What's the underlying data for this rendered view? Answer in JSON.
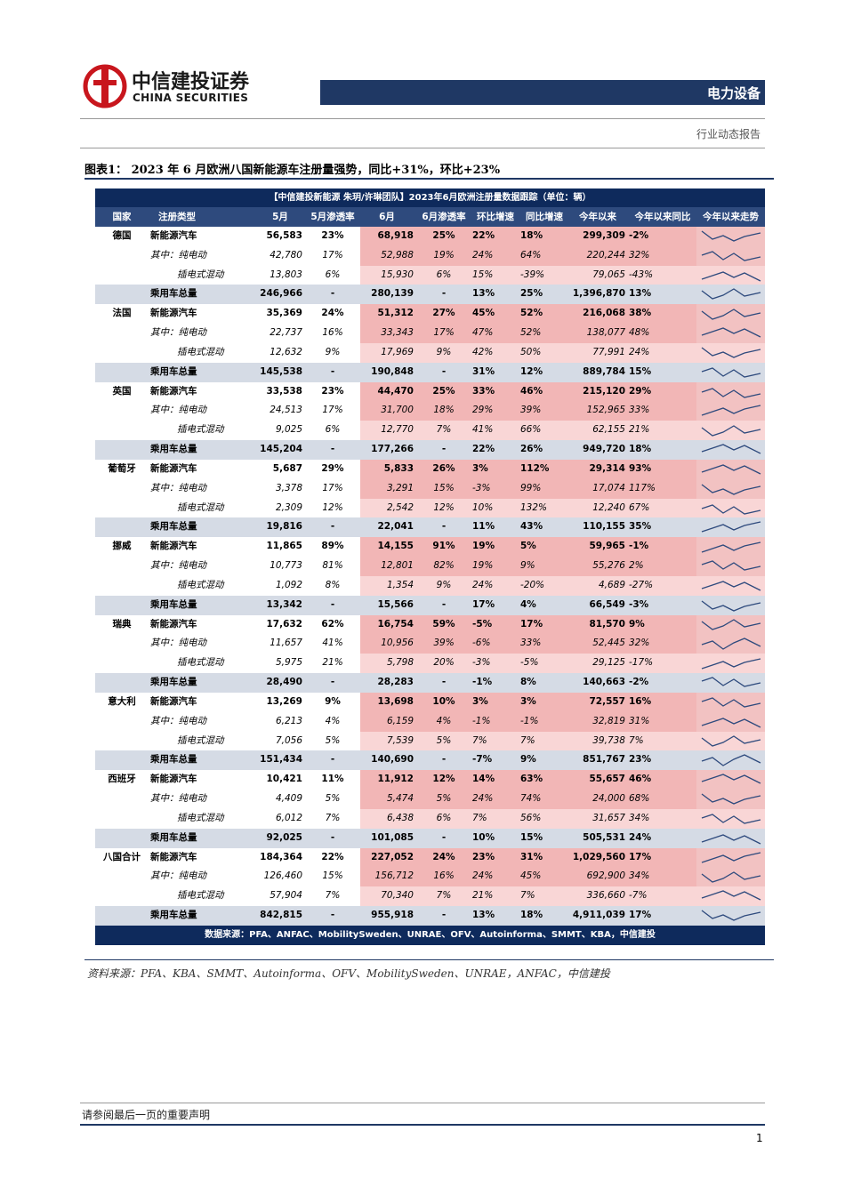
{
  "header": {
    "logo_cn": "中信建投证券",
    "logo_en": "CHINA SECURITIES",
    "sector": "电力设备",
    "report_type": "行业动态报告"
  },
  "figure": {
    "title": "图表1：  2023 年 6 月欧洲八国新能源车注册量强势，同比+31%，环比+23%"
  },
  "table": {
    "caption": "【中信建投新能源 朱玥/许琳团队】2023年6月欧洲注册量数据跟踪（单位：辆）",
    "columns": [
      "国家",
      "注册类型",
      "5月",
      "5月渗透率",
      "6月",
      "6月渗透率",
      "环比增速",
      "同比增速",
      "今年以来",
      "今年以来同比",
      "今年以来走势"
    ],
    "groups": [
      {
        "country": "德国",
        "rows": [
          [
            "新能源汽车",
            "56,583",
            "23%",
            "68,918",
            "25%",
            "22%",
            "18%",
            "299,309",
            "-2%"
          ],
          [
            "其中：纯电动",
            "42,780",
            "17%",
            "52,988",
            "19%",
            "24%",
            "64%",
            "220,244",
            "32%"
          ],
          [
            "插电式混动",
            "13,803",
            "6%",
            "15,930",
            "6%",
            "15%",
            "-39%",
            "79,065",
            "-43%"
          ],
          [
            "乘用车总量",
            "246,966",
            "-",
            "280,139",
            "-",
            "13%",
            "25%",
            "1,396,870",
            "13%"
          ]
        ]
      },
      {
        "country": "法国",
        "rows": [
          [
            "新能源汽车",
            "35,369",
            "24%",
            "51,312",
            "27%",
            "45%",
            "52%",
            "216,068",
            "38%"
          ],
          [
            "其中：纯电动",
            "22,737",
            "16%",
            "33,343",
            "17%",
            "47%",
            "52%",
            "138,077",
            "48%"
          ],
          [
            "插电式混动",
            "12,632",
            "9%",
            "17,969",
            "9%",
            "42%",
            "50%",
            "77,991",
            "24%"
          ],
          [
            "乘用车总量",
            "145,538",
            "-",
            "190,848",
            "-",
            "31%",
            "12%",
            "889,784",
            "15%"
          ]
        ]
      },
      {
        "country": "英国",
        "rows": [
          [
            "新能源汽车",
            "33,538",
            "23%",
            "44,470",
            "25%",
            "33%",
            "46%",
            "215,120",
            "29%"
          ],
          [
            "其中：纯电动",
            "24,513",
            "17%",
            "31,700",
            "18%",
            "29%",
            "39%",
            "152,965",
            "33%"
          ],
          [
            "插电式混动",
            "9,025",
            "6%",
            "12,770",
            "7%",
            "41%",
            "66%",
            "62,155",
            "21%"
          ],
          [
            "乘用车总量",
            "145,204",
            "-",
            "177,266",
            "-",
            "22%",
            "26%",
            "949,720",
            "18%"
          ]
        ]
      },
      {
        "country": "葡萄牙",
        "rows": [
          [
            "新能源汽车",
            "5,687",
            "29%",
            "5,833",
            "26%",
            "3%",
            "112%",
            "29,314",
            "93%"
          ],
          [
            "其中：纯电动",
            "3,378",
            "17%",
            "3,291",
            "15%",
            "-3%",
            "99%",
            "17,074",
            "117%"
          ],
          [
            "插电式混动",
            "2,309",
            "12%",
            "2,542",
            "12%",
            "10%",
            "132%",
            "12,240",
            "67%"
          ],
          [
            "乘用车总量",
            "19,816",
            "-",
            "22,041",
            "-",
            "11%",
            "43%",
            "110,155",
            "35%"
          ]
        ]
      },
      {
        "country": "挪威",
        "rows": [
          [
            "新能源汽车",
            "11,865",
            "89%",
            "14,155",
            "91%",
            "19%",
            "5%",
            "59,965",
            "-1%"
          ],
          [
            "其中：纯电动",
            "10,773",
            "81%",
            "12,801",
            "82%",
            "19%",
            "9%",
            "55,276",
            "2%"
          ],
          [
            "插电式混动",
            "1,092",
            "8%",
            "1,354",
            "9%",
            "24%",
            "-20%",
            "4,689",
            "-27%"
          ],
          [
            "乘用车总量",
            "13,342",
            "-",
            "15,566",
            "-",
            "17%",
            "4%",
            "66,549",
            "-3%"
          ]
        ]
      },
      {
        "country": "瑞典",
        "rows": [
          [
            "新能源汽车",
            "17,632",
            "62%",
            "16,754",
            "59%",
            "-5%",
            "17%",
            "81,570",
            "9%"
          ],
          [
            "其中：纯电动",
            "11,657",
            "41%",
            "10,956",
            "39%",
            "-6%",
            "33%",
            "52,445",
            "32%"
          ],
          [
            "插电式混动",
            "5,975",
            "21%",
            "5,798",
            "20%",
            "-3%",
            "-5%",
            "29,125",
            "-17%"
          ],
          [
            "乘用车总量",
            "28,490",
            "-",
            "28,283",
            "-",
            "-1%",
            "8%",
            "140,663",
            "-2%"
          ]
        ]
      },
      {
        "country": "意大利",
        "rows": [
          [
            "新能源汽车",
            "13,269",
            "9%",
            "13,698",
            "10%",
            "3%",
            "3%",
            "72,557",
            "16%"
          ],
          [
            "其中：纯电动",
            "6,213",
            "4%",
            "6,159",
            "4%",
            "-1%",
            "-1%",
            "32,819",
            "31%"
          ],
          [
            "插电式混动",
            "7,056",
            "5%",
            "7,539",
            "5%",
            "7%",
            "7%",
            "39,738",
            "7%"
          ],
          [
            "乘用车总量",
            "151,434",
            "-",
            "140,690",
            "-",
            "-7%",
            "9%",
            "851,767",
            "23%"
          ]
        ]
      },
      {
        "country": "西班牙",
        "rows": [
          [
            "新能源汽车",
            "10,421",
            "11%",
            "11,912",
            "12%",
            "14%",
            "63%",
            "55,657",
            "46%"
          ],
          [
            "其中：纯电动",
            "4,409",
            "5%",
            "5,474",
            "5%",
            "24%",
            "74%",
            "24,000",
            "68%"
          ],
          [
            "插电式混动",
            "6,012",
            "7%",
            "6,438",
            "6%",
            "7%",
            "56%",
            "31,657",
            "34%"
          ],
          [
            "乘用车总量",
            "92,025",
            "-",
            "101,085",
            "-",
            "10%",
            "15%",
            "505,531",
            "24%"
          ]
        ]
      },
      {
        "country": "八国合计",
        "rows": [
          [
            "新能源汽车",
            "184,364",
            "22%",
            "227,052",
            "24%",
            "23%",
            "31%",
            "1,029,560",
            "17%"
          ],
          [
            "其中：纯电动",
            "126,460",
            "15%",
            "156,712",
            "16%",
            "24%",
            "45%",
            "692,900",
            "34%"
          ],
          [
            "插电式混动",
            "57,904",
            "7%",
            "70,340",
            "7%",
            "21%",
            "7%",
            "336,660",
            "-7%"
          ],
          [
            "乘用车总量",
            "842,815",
            "-",
            "955,918",
            "-",
            "13%",
            "18%",
            "4,911,039",
            "17%"
          ]
        ]
      }
    ],
    "footer": "数据来源：PFA、ANFAC、MobilitySweden、UNRAE、OFV、Autoinforma、SMMT、KBA，中信建投"
  },
  "source": "资料来源：PFA、KBA、SMMT、Autoinforma、OFV、MobilitySweden、UNRAE，ANFAC，中信建投",
  "disclaimer": "请参阅最后一页的重要声明",
  "page_number": "1"
}
